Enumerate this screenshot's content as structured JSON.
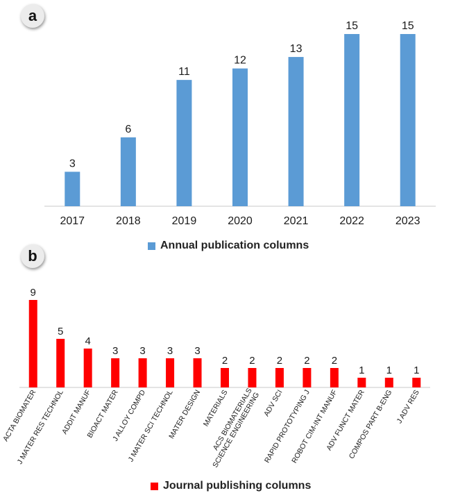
{
  "panels": {
    "a": {
      "label": "a"
    },
    "b": {
      "label": "b"
    }
  },
  "colors": {
    "annual": "#5b9bd5",
    "journal": "#ff0000",
    "axis": "#c8c8c8"
  },
  "chart_data": [
    {
      "type": "bar",
      "panel": "a",
      "categories": [
        "2017",
        "2018",
        "2019",
        "2020",
        "2021",
        "2022",
        "2023"
      ],
      "series": [
        {
          "name": "Annual publication columns",
          "values": [
            3,
            6,
            11,
            12,
            13,
            15,
            15
          ]
        }
      ],
      "ylim": [
        0,
        15
      ],
      "data_labels": true,
      "grid": false,
      "legend": "bottom-center"
    },
    {
      "type": "bar",
      "panel": "b",
      "categories": [
        "ACTA BIOMATER",
        "J MATER RES TECHNOL",
        "ADDIT MANUF",
        "BIOACT MATER",
        "J ALLOY COMPD",
        "J MATER SCI TECHNOL",
        "MATER DESIGN",
        "MATERIALS",
        "ACS BIOMATERIALS SCIENCE ENGINEERING",
        "ADV SCI",
        "RAPID PROTOTYPING J",
        "ROBOT CIM-INT MANUF",
        "ADV FUNCT MATER",
        "COMPOS PART B-ENG",
        "J ADV RES"
      ],
      "series": [
        {
          "name": "Journal publishing columns",
          "values": [
            9,
            5,
            4,
            3,
            3,
            3,
            3,
            2,
            2,
            2,
            2,
            2,
            1,
            1,
            1
          ]
        }
      ],
      "ylim": [
        0,
        9
      ],
      "data_labels": true,
      "grid": false,
      "legend": "bottom-center"
    }
  ]
}
